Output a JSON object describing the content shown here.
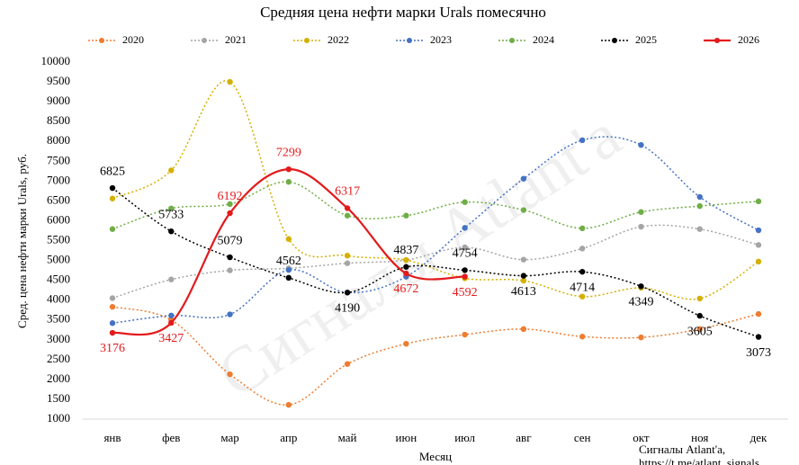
{
  "chart_data": {
    "type": "line",
    "title": "Средняя цена нефти марки Urals помесячно",
    "x_label": "Месяц",
    "y_label": "Сред. цена нефти марки Urals, руб.",
    "watermark": "Сигналы Atlant'a",
    "source": [
      "Сигналы Atlant'a,",
      "https://t.me/atlant_signals"
    ],
    "categories": [
      "янв",
      "фев",
      "мар",
      "апр",
      "май",
      "июн",
      "июл",
      "авг",
      "сен",
      "окт",
      "ноя",
      "дек"
    ],
    "ylim": [
      1000,
      10000
    ],
    "yticks": [
      1000,
      1500,
      2000,
      2500,
      3000,
      3500,
      4000,
      4500,
      5000,
      5500,
      6000,
      6500,
      7000,
      7500,
      8000,
      8500,
      9000,
      9500,
      10000
    ],
    "grid": false,
    "legend": "top",
    "series": [
      {
        "name": "2020",
        "color": "#ed7d31",
        "line_style": "dotted",
        "values": [
          3830,
          3500,
          2130,
          1360,
          2390,
          2900,
          3130,
          3270,
          3080,
          3060,
          3270,
          3650
        ]
      },
      {
        "name": "2021",
        "color": "#a5a5a5",
        "line_style": "dotted",
        "values": [
          4050,
          4520,
          4750,
          4800,
          4930,
          5010,
          5330,
          5020,
          5300,
          5850,
          5790,
          5390
        ]
      },
      {
        "name": "2022",
        "color": "#d4b000",
        "line_style": "dotted",
        "values": [
          6560,
          7270,
          9500,
          5540,
          5120,
          5010,
          4550,
          4490,
          4090,
          4310,
          4040,
          4970
        ]
      },
      {
        "name": "2023",
        "color": "#4472c4",
        "line_style": "dotted",
        "values": [
          3420,
          3610,
          3640,
          4760,
          4190,
          4590,
          5820,
          7060,
          8030,
          7910,
          6600,
          5760
        ]
      },
      {
        "name": "2024",
        "color": "#70ad47",
        "line_style": "dotted",
        "values": [
          5790,
          6310,
          6420,
          6980,
          6130,
          6130,
          6470,
          6270,
          5810,
          6220,
          6370,
          6490
        ]
      },
      {
        "name": "2025",
        "color": "#000000",
        "line_style": "dotted",
        "data_labels": true,
        "values": [
          6825,
          5733,
          5079,
          4562,
          4190,
          4837,
          4754,
          4613,
          4714,
          4349,
          3605,
          3073
        ]
      },
      {
        "name": "2026",
        "color": "#e31a1c",
        "line_style": "solid",
        "data_labels": true,
        "values": [
          3176,
          3427,
          6192,
          7299,
          6317,
          4672,
          4592,
          null,
          null,
          null,
          null,
          null
        ]
      }
    ]
  }
}
